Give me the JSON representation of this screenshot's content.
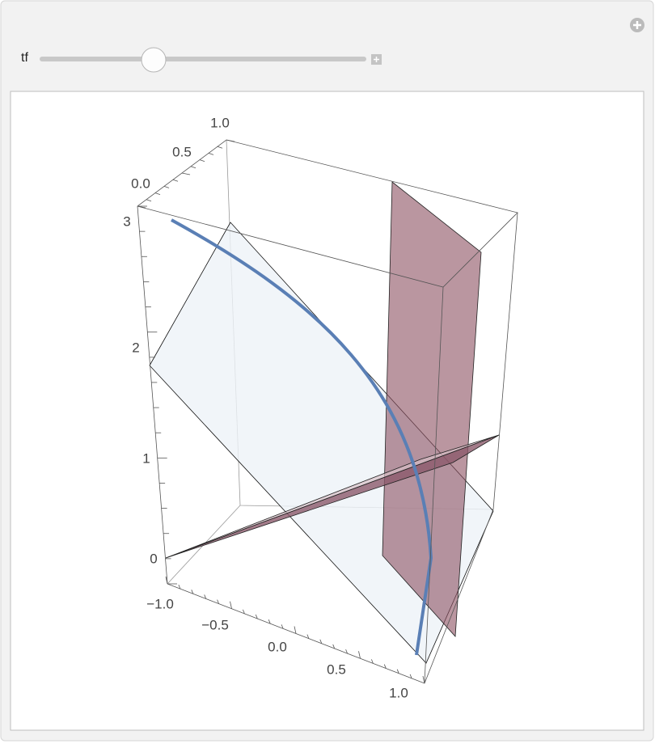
{
  "control": {
    "label": "tf"
  },
  "plot": {
    "depth_axis_ticks": [
      "0.0",
      "0.5",
      "1.0"
    ],
    "vertical_axis_ticks": [
      "0",
      "1",
      "2",
      "3"
    ],
    "front_axis_ticks": [
      "−1.0",
      "−0.5",
      "0.0",
      "0.5",
      "1.0"
    ]
  }
}
